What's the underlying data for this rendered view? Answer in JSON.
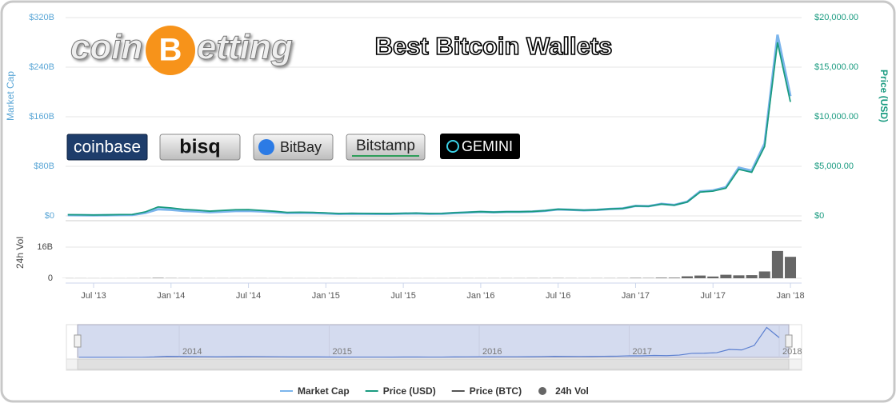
{
  "chart_data": {
    "type": "line",
    "title": "Best Bitcoin Wallets",
    "ylabel": "Market Cap",
    "y2label": "Price (USD)",
    "vol_label": "24h Vol",
    "x": [
      "May '13",
      "Jun '13",
      "Jul '13",
      "Aug '13",
      "Sep '13",
      "Oct '13",
      "Nov '13",
      "Dec '13",
      "Jan '14",
      "Feb '14",
      "Mar '14",
      "Apr '14",
      "May '14",
      "Jun '14",
      "Jul '14",
      "Aug '14",
      "Sep '14",
      "Oct '14",
      "Nov '14",
      "Dec '14",
      "Jan '15",
      "Feb '15",
      "Mar '15",
      "Apr '15",
      "May '15",
      "Jun '15",
      "Jul '15",
      "Aug '15",
      "Sep '15",
      "Oct '15",
      "Nov '15",
      "Dec '15",
      "Jan '16",
      "Feb '16",
      "Mar '16",
      "Apr '16",
      "May '16",
      "Jun '16",
      "Jul '16",
      "Aug '16",
      "Sep '16",
      "Oct '16",
      "Nov '16",
      "Dec '16",
      "Jan '17",
      "Feb '17",
      "Mar '17",
      "Apr '17",
      "May '17",
      "Jun '17",
      "Jul '17",
      "Aug '17",
      "Sep '17",
      "Oct '17",
      "Nov '17",
      "Dec '17",
      "Jan '18"
    ],
    "xticks": [
      "Jul '13",
      "Jan '14",
      "Jul '14",
      "Jan '15",
      "Jul '15",
      "Jan '16",
      "Jul '16",
      "Jan '17",
      "Jul '17",
      "Jan '18"
    ],
    "ylim": [
      0,
      320
    ],
    "yticks": [
      {
        "value": 0,
        "label": "$0"
      },
      {
        "value": 80,
        "label": "$80B"
      },
      {
        "value": 160,
        "label": "$160B"
      },
      {
        "value": 240,
        "label": "$240B"
      },
      {
        "value": 320,
        "label": "$320B"
      }
    ],
    "y2lim": [
      0,
      20000
    ],
    "y2ticks": [
      {
        "value": 0,
        "label": "$0"
      },
      {
        "value": 5000,
        "label": "$5,000.00"
      },
      {
        "value": 10000,
        "label": "$10,000.00"
      },
      {
        "value": 15000,
        "label": "$15,000.00"
      },
      {
        "value": 20000,
        "label": "$20,000.00"
      }
    ],
    "vol_lim": [
      0,
      24
    ],
    "vol_ticks": [
      0,
      {
        "value": 16,
        "label": "16B"
      }
    ],
    "grid": true,
    "series": [
      {
        "name": "Market Cap",
        "color": "#7cb5ec",
        "axis": "y",
        "values": [
          1.3,
          1.2,
          1.0,
          1.2,
          1.5,
          1.6,
          4.8,
          10.8,
          9.8,
          8.0,
          7.2,
          6.0,
          6.9,
          7.9,
          8.1,
          7.2,
          6.2,
          4.6,
          4.9,
          4.7,
          4.1,
          3.2,
          3.6,
          3.4,
          3.3,
          3.2,
          3.7,
          4.0,
          3.4,
          3.5,
          4.7,
          5.5,
          6.5,
          5.8,
          6.4,
          6.5,
          7.0,
          8.3,
          10.5,
          9.8,
          9.1,
          9.7,
          11.2,
          12.0,
          16.1,
          15.7,
          19.3,
          17.6,
          22.8,
          39.4,
          41.0,
          46.2,
          77.8,
          73.0,
          116.6,
          292.3,
          193.2
        ]
      },
      {
        "name": "Price (USD)",
        "color": "#1a9b80",
        "axis": "y2",
        "values": [
          120,
          110,
          90,
          105,
          130,
          140,
          400,
          900,
          800,
          650,
          580,
          480,
          550,
          620,
          630,
          550,
          470,
          350,
          370,
          350,
          300,
          230,
          260,
          240,
          235,
          225,
          260,
          280,
          230,
          240,
          320,
          370,
          430,
          380,
          420,
          420,
          450,
          530,
          670,
          620,
          575,
          610,
          700,
          750,
          1000,
          970,
          1190,
          1080,
          1400,
          2400,
          2500,
          2800,
          4700,
          4400,
          7000,
          17500,
          11500
        ]
      },
      {
        "name": "Price (BTC)",
        "color": "#555555"
      },
      {
        "name": "24h Vol",
        "color": "#666666",
        "axis": "vol",
        "type": "bar",
        "values": [
          0.05,
          0.04,
          0.03,
          0.03,
          0.03,
          0.04,
          0.1,
          0.2,
          0.1,
          0.08,
          0.06,
          0.05,
          0.05,
          0.05,
          0.04,
          0.04,
          0.03,
          0.04,
          0.03,
          0.03,
          0.05,
          0.04,
          0.04,
          0.03,
          0.03,
          0.03,
          0.03,
          0.03,
          0.03,
          0.03,
          0.06,
          0.05,
          0.05,
          0.06,
          0.06,
          0.06,
          0.08,
          0.1,
          0.1,
          0.07,
          0.06,
          0.07,
          0.08,
          0.1,
          0.2,
          0.15,
          0.3,
          0.3,
          1.0,
          1.4,
          0.9,
          1.8,
          1.5,
          1.6,
          3.5,
          14,
          11
        ]
      }
    ],
    "navigator_ticks": [
      2014,
      2015,
      2016,
      2017,
      2018
    ]
  },
  "overlay": {
    "logo": [
      "coin",
      "B",
      "etting"
    ],
    "wallets": [
      "coinbase",
      "bisq",
      "BitBay",
      "Bitstamp",
      "GEMINI"
    ]
  }
}
